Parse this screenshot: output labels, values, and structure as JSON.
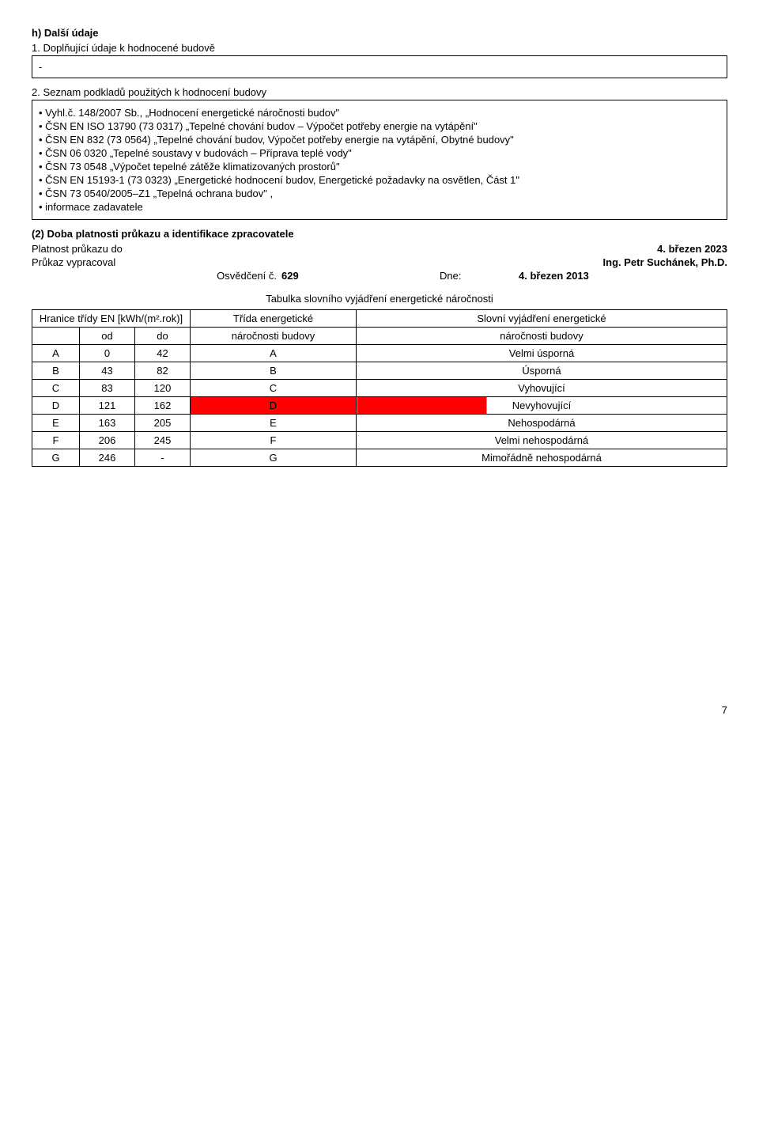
{
  "sectionH": {
    "heading": "h) Další údaje",
    "sub1": "1. Doplňující údaje k hodnocené budově",
    "box1": "-",
    "sub2": "2. Seznam podkladů použitých k hodnocení budovy",
    "bullets": [
      "• Vyhl.č. 148/2007 Sb., „Hodnocení energetické náročnosti budov\"",
      "• ČSN EN ISO 13790 (73 0317) „Tepelné chování budov – Výpočet potřeby energie na vytápění\"",
      "• ČSN EN 832 (73 0564) „Tepelné chování budov, Výpočet potřeby energie na vytápění, Obytné budovy\"",
      "• ČSN 06 0320 „Tepelné soustavy v budovách – Příprava teplé vody\"",
      "• ČSN 73 0548 „Výpočet tepelné zátěže klimatizovaných prostorů\"",
      "• ČSN EN 15193-1 (73 0323) „Energetické hodnocení budov, Energetické požadavky na osvětlen, Část 1\"",
      "• ČSN 73 0540/2005–Z1 „Tepelná ochrana budov\" ,",
      "• informace zadavatele"
    ]
  },
  "section2": {
    "heading": "(2) Doba platnosti průkazu a identifikace zpracovatele",
    "row1_l": "Platnost průkazu do",
    "row1_r": "4. březen 2023",
    "row2_l": "Průkaz vypracoval",
    "row2_r": "Ing. Petr Suchánek, Ph.D.",
    "osv_label": "Osvědčení č.",
    "osv_num": "629",
    "osv_dne": "Dne:",
    "osv_date": "4. březen 2013"
  },
  "table": {
    "title": "Tabulka slovního vyjádření energetické náročnosti",
    "header_group_left": "Hranice třídy EN [kWh/(m².rok)]",
    "header_od": "od",
    "header_do": "do",
    "header_mid_top": "Třída energetické",
    "header_mid_bot": "náročnosti budovy",
    "header_right_top": "Slovní vyjádření energetické",
    "header_right_bot": "náročnosti budovy",
    "rows": [
      {
        "cls": "A",
        "od": "0",
        "do": "42",
        "mid": "A",
        "desc": "Velmi úsporná",
        "hl": false
      },
      {
        "cls": "B",
        "od": "43",
        "do": "82",
        "mid": "B",
        "desc": "Úsporná",
        "hl": false
      },
      {
        "cls": "C",
        "od": "83",
        "do": "120",
        "mid": "C",
        "desc": "Vyhovující",
        "hl": false
      },
      {
        "cls": "D",
        "od": "121",
        "do": "162",
        "mid": "D",
        "desc": "Nevyhovující",
        "hl": true
      },
      {
        "cls": "E",
        "od": "163",
        "do": "205",
        "mid": "E",
        "desc": "Nehospodárná",
        "hl": false
      },
      {
        "cls": "F",
        "od": "206",
        "do": "245",
        "mid": "F",
        "desc": "Velmi nehospodárná",
        "hl": false
      },
      {
        "cls": "G",
        "od": "246",
        "do": "-",
        "mid": "G",
        "desc": "Mimořádně nehospodárná",
        "hl": false
      }
    ],
    "col_widths": {
      "cls": "60px",
      "od": "70px",
      "do": "70px",
      "mid": "210px",
      "desc": "auto"
    },
    "highlight_color": "#ff0000"
  },
  "pageNumber": "7"
}
